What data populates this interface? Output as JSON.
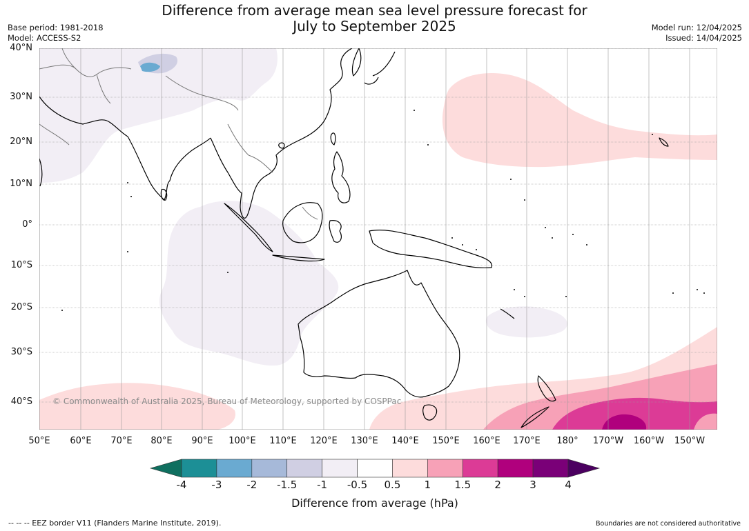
{
  "title_line1": "Difference from average mean sea level pressure forecast for",
  "title_line2": "July to September 2025",
  "header_left": [
    "Base period: 1981-2018",
    "Model: ACCESS-S2"
  ],
  "header_right": [
    "Model run: 12/04/2025",
    "Issued: 14/04/2025"
  ],
  "lat_labels": [
    "40°N",
    "30°N",
    "20°N",
    "10°N",
    "0°",
    "10°S",
    "20°S",
    "30°S",
    "40°S"
  ],
  "lon_labels": [
    "50°E",
    "60°E",
    "70°E",
    "80°E",
    "90°E",
    "100°E",
    "110°E",
    "120°E",
    "130°E",
    "140°E",
    "150°E",
    "160°E",
    "170°E",
    "180°",
    "170°W",
    "160°W",
    "150°W"
  ],
  "copyright": "© Commonwealth of Australia 2025, Bureau of Meteorology, supported by COSPPac",
  "colorbar": {
    "ticks": [
      "-4",
      "-3",
      "-2",
      "-1.5",
      "-1",
      "-0.5",
      "0.5",
      "1",
      "1.5",
      "2",
      "3",
      "4"
    ],
    "colors": [
      "#0f6f5f",
      "#1c8f96",
      "#6aaad1",
      "#a6b9d9",
      "#d0cfe3",
      "#f2eef5",
      "#ffffff",
      "#fddcdc",
      "#f7a1b7",
      "#dc3b96",
      "#b0007d",
      "#7a0078",
      "#4b0060"
    ],
    "label": "Difference from average (hPa)"
  },
  "footer_left": "--  --  -- EEZ border V11 (Flanders Marine Institute, 2019).",
  "footer_right": "Boundaries are not considered authoritative"
}
